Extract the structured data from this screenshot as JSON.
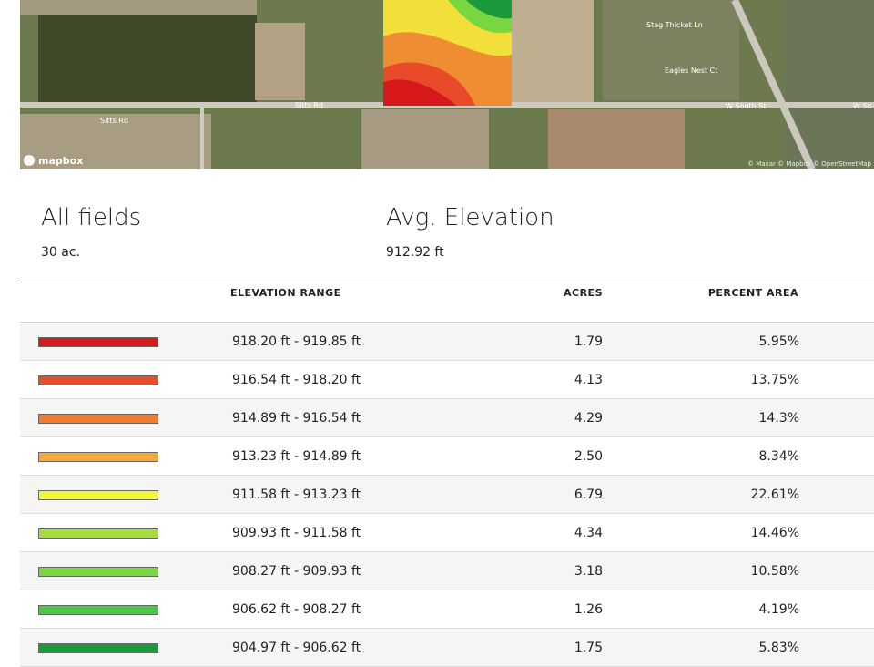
{
  "map": {
    "labels": [
      "Sitts Rd",
      "Sitts Rd",
      "W South St",
      "W So",
      "Stag Thicket Ln",
      "Eagles Nest Ct"
    ],
    "logo": "mapbox",
    "attribution": "© Maxar © Mapbox © OpenStreetMap"
  },
  "summary": {
    "field_title": "All fields",
    "field_area": "30 ac.",
    "elevation_title": "Avg. Elevation",
    "elevation_value": "912.92 ft"
  },
  "table": {
    "headers": [
      "ELEVATION RANGE",
      "ACRES",
      "PERCENT AREA"
    ],
    "rows": [
      {
        "color": "#d7191c",
        "range": "918.20 ft - 919.85 ft",
        "acres": "1.79",
        "percent": "5.95%"
      },
      {
        "color": "#e4502b",
        "range": "916.54 ft - 918.20 ft",
        "acres": "4.13",
        "percent": "13.75%"
      },
      {
        "color": "#f07c2f",
        "range": "914.89 ft - 916.54 ft",
        "acres": "4.29",
        "percent": "14.3%"
      },
      {
        "color": "#f6a83a",
        "range": "913.23 ft - 914.89 ft",
        "acres": "2.50",
        "percent": "8.34%"
      },
      {
        "color": "#f4f53a",
        "range": "911.58 ft - 913.23 ft",
        "acres": "6.79",
        "percent": "22.61%"
      },
      {
        "color": "#a6de3b",
        "range": "909.93 ft - 911.58 ft",
        "acres": "4.34",
        "percent": "14.46%"
      },
      {
        "color": "#7ad63f",
        "range": "908.27 ft - 909.93 ft",
        "acres": "3.18",
        "percent": "10.58%"
      },
      {
        "color": "#48c943",
        "range": "906.62 ft - 908.27 ft",
        "acres": "1.26",
        "percent": "4.19%"
      },
      {
        "color": "#1a9a3a",
        "range": "904.97 ft - 906.62 ft",
        "acres": "1.75",
        "percent": "5.83%"
      }
    ]
  }
}
